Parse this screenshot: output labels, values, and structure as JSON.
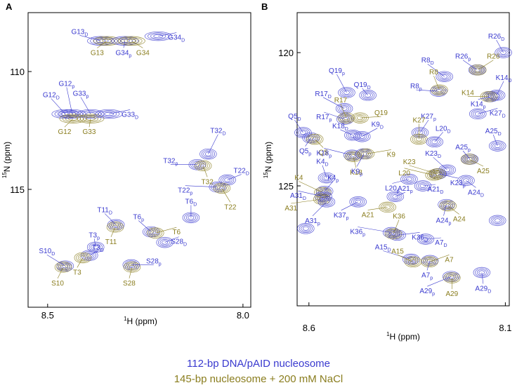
{
  "colors": {
    "blue": "#3a3acf",
    "olive": "#8a7d1e"
  },
  "legend": {
    "blue": "112-bp DNA/pAID nucleosome",
    "olive": "145-bp nucleosome + 200 mM NaCl"
  },
  "chart_data": [
    {
      "type": "scatter",
      "panel": "A",
      "xlabel": "1H (ppm)",
      "ylabel": "15N (ppm)",
      "xlim": [
        8.55,
        7.98
      ],
      "ylim": [
        107.5,
        120.0
      ],
      "xticks": [
        "8.5",
        "8.0"
      ],
      "yticks": [
        "110",
        "115"
      ],
      "peaks": [
        {
          "x": 8.364,
          "y": 108.7,
          "c": "blue",
          "label": "G13",
          "sub": "D"
        },
        {
          "x": 8.348,
          "y": 108.7,
          "c": "olive",
          "label": "G13",
          "sub": ""
        },
        {
          "x": 8.302,
          "y": 108.7,
          "c": "blue",
          "label": "G34",
          "sub": "p"
        },
        {
          "x": 8.285,
          "y": 108.7,
          "c": "olive",
          "label": "G34",
          "sub": ""
        },
        {
          "x": 8.217,
          "y": 108.5,
          "c": "blue",
          "label": "G34",
          "sub": "D"
        },
        {
          "x": 8.455,
          "y": 111.8,
          "c": "blue",
          "label": "G12",
          "sub": "D"
        },
        {
          "x": 8.437,
          "y": 111.8,
          "c": "blue",
          "label": "G12",
          "sub": "p"
        },
        {
          "x": 8.435,
          "y": 112.0,
          "c": "olive",
          "label": "G12",
          "sub": ""
        },
        {
          "x": 8.39,
          "y": 111.8,
          "c": "blue",
          "label": "G33",
          "sub": "p"
        },
        {
          "x": 8.39,
          "y": 112.0,
          "c": "olive",
          "label": "G33",
          "sub": ""
        },
        {
          "x": 8.343,
          "y": 111.8,
          "c": "blue",
          "label": "G33",
          "sub": "D"
        },
        {
          "x": 8.089,
          "y": 113.5,
          "c": "blue",
          "label": "T32",
          "sub": "D"
        },
        {
          "x": 8.117,
          "y": 113.95,
          "c": "blue",
          "label": "T32",
          "sub": "p"
        },
        {
          "x": 8.102,
          "y": 114.0,
          "c": "olive",
          "label": "T32",
          "sub": ""
        },
        {
          "x": 8.04,
          "y": 114.6,
          "c": "blue",
          "label": "T22",
          "sub": "D"
        },
        {
          "x": 8.065,
          "y": 114.9,
          "c": "blue",
          "label": "T22",
          "sub": "p"
        },
        {
          "x": 8.054,
          "y": 114.95,
          "c": "olive",
          "label": "T22",
          "sub": ""
        },
        {
          "x": 8.133,
          "y": 116.2,
          "c": "blue",
          "label": "T6",
          "sub": "D"
        },
        {
          "x": 8.325,
          "y": 116.5,
          "c": "blue",
          "label": "T11",
          "sub": "D"
        },
        {
          "x": 8.327,
          "y": 116.6,
          "c": "olive",
          "label": "T11",
          "sub": ""
        },
        {
          "x": 8.235,
          "y": 116.8,
          "c": "blue",
          "label": "T6",
          "sub": "p"
        },
        {
          "x": 8.224,
          "y": 116.85,
          "c": "olive",
          "label": "T6",
          "sub": ""
        },
        {
          "x": 8.2,
          "y": 117.25,
          "c": "blue",
          "label": "S28",
          "sub": "D"
        },
        {
          "x": 8.377,
          "y": 117.45,
          "c": "blue",
          "label": "T3",
          "sub": "p"
        },
        {
          "x": 8.393,
          "y": 117.8,
          "c": "blue",
          "label": "T3",
          "sub": "D"
        },
        {
          "x": 8.41,
          "y": 117.9,
          "c": "olive",
          "label": "T3",
          "sub": ""
        },
        {
          "x": 8.455,
          "y": 118.25,
          "c": "blue",
          "label": "S10",
          "sub": "D"
        },
        {
          "x": 8.46,
          "y": 118.3,
          "c": "olive",
          "label": "S10",
          "sub": ""
        },
        {
          "x": 8.286,
          "y": 118.2,
          "c": "blue",
          "label": "S28",
          "sub": "p"
        },
        {
          "x": 8.284,
          "y": 118.3,
          "c": "olive",
          "label": "S28",
          "sub": ""
        }
      ]
    },
    {
      "type": "scatter",
      "panel": "B",
      "xlabel": "1H (ppm)",
      "ylabel": "15N (ppm)",
      "xlim": [
        8.63,
        8.09
      ],
      "ylim": [
        118.5,
        129.5
      ],
      "xticks": [
        "8.6",
        "8.1"
      ],
      "yticks": [
        "120",
        "125"
      ],
      "peaks": [
        {
          "x": 8.105,
          "y": 120.0,
          "c": "blue",
          "label": "R26",
          "sub": "D"
        },
        {
          "x": 8.255,
          "y": 120.9,
          "c": "blue",
          "label": "R8",
          "sub": "D"
        },
        {
          "x": 8.172,
          "y": 120.65,
          "c": "blue",
          "label": "R26",
          "sub": "p"
        },
        {
          "x": 8.17,
          "y": 120.65,
          "c": "olive",
          "label": "R26",
          "sub": ""
        },
        {
          "x": 8.27,
          "y": 121.45,
          "c": "blue",
          "label": "R8",
          "sub": "p"
        },
        {
          "x": 8.268,
          "y": 121.4,
          "c": "olive",
          "label": "R8",
          "sub": ""
        },
        {
          "x": 8.504,
          "y": 121.5,
          "c": "blue",
          "label": "Q19",
          "sub": "p"
        },
        {
          "x": 8.45,
          "y": 121.6,
          "c": "blue",
          "label": "Q19",
          "sub": "D"
        },
        {
          "x": 8.122,
          "y": 121.6,
          "c": "blue",
          "label": "K14",
          "sub": "D"
        },
        {
          "x": 8.137,
          "y": 121.65,
          "c": "blue",
          "label": "K14",
          "sub": "p"
        },
        {
          "x": 8.142,
          "y": 121.65,
          "c": "olive",
          "label": "K14",
          "sub": ""
        },
        {
          "x": 8.51,
          "y": 122.1,
          "c": "blue",
          "label": "R17",
          "sub": "D"
        },
        {
          "x": 8.508,
          "y": 122.5,
          "c": "blue",
          "label": "R17",
          "sub": "p"
        },
        {
          "x": 8.505,
          "y": 122.45,
          "c": "olive",
          "label": "R17",
          "sub": ""
        },
        {
          "x": 8.47,
          "y": 122.45,
          "c": "olive",
          "label": "Q19",
          "sub": ""
        },
        {
          "x": 8.17,
          "y": 122.3,
          "c": "blue",
          "label": "K27",
          "sub": "D"
        },
        {
          "x": 8.317,
          "y": 123.0,
          "c": "blue",
          "label": "K27",
          "sub": "p"
        },
        {
          "x": 8.12,
          "y": 123.5,
          "c": "blue",
          "label": "A25",
          "sub": "D"
        },
        {
          "x": 8.615,
          "y": 123.0,
          "c": "blue",
          "label": "Q5",
          "sub": "D"
        },
        {
          "x": 8.595,
          "y": 123.2,
          "c": "blue",
          "label": "Q5",
          "sub": "p"
        },
        {
          "x": 8.585,
          "y": 123.25,
          "c": "olive",
          "label": "Q5",
          "sub": ""
        },
        {
          "x": 8.488,
          "y": 123.1,
          "c": "blue",
          "label": "K18",
          "sub": "D"
        },
        {
          "x": 8.465,
          "y": 123.15,
          "c": "blue",
          "label": "K9",
          "sub": "D"
        },
        {
          "x": 8.32,
          "y": 123.25,
          "c": "olive",
          "label": "K27",
          "sub": ""
        },
        {
          "x": 8.28,
          "y": 123.35,
          "c": "blue",
          "label": "L20",
          "sub": "D"
        },
        {
          "x": 8.19,
          "y": 124.0,
          "c": "blue",
          "label": "A25",
          "sub": "p"
        },
        {
          "x": 8.192,
          "y": 124.0,
          "c": "olive",
          "label": "A25",
          "sub": ""
        },
        {
          "x": 8.49,
          "y": 123.85,
          "c": "blue",
          "label": "K18",
          "sub": "p"
        },
        {
          "x": 8.487,
          "y": 123.9,
          "c": "olive",
          "label": "K18",
          "sub": ""
        },
        {
          "x": 8.46,
          "y": 123.8,
          "c": "blue",
          "label": "K9",
          "sub": "p"
        },
        {
          "x": 8.455,
          "y": 123.8,
          "c": "olive",
          "label": "K9",
          "sub": ""
        },
        {
          "x": 8.248,
          "y": 124.4,
          "c": "blue",
          "label": "K23",
          "sub": "D"
        },
        {
          "x": 8.271,
          "y": 124.55,
          "c": "blue",
          "label": "K23",
          "sub": "p"
        },
        {
          "x": 8.273,
          "y": 124.55,
          "c": "olive",
          "label": "K23",
          "sub": ""
        },
        {
          "x": 8.282,
          "y": 124.6,
          "c": "olive",
          "label": "L20",
          "sub": ""
        },
        {
          "x": 8.2,
          "y": 124.8,
          "c": "blue",
          "label": "A24",
          "sub": "D"
        },
        {
          "x": 8.555,
          "y": 124.7,
          "c": "blue",
          "label": "K4",
          "sub": "D"
        },
        {
          "x": 8.345,
          "y": 124.75,
          "c": "blue",
          "label": "L20",
          "sub": "p"
        },
        {
          "x": 8.31,
          "y": 125.0,
          "c": "blue",
          "label": "A21",
          "sub": "D"
        },
        {
          "x": 8.56,
          "y": 125.2,
          "c": "blue",
          "label": "K4",
          "sub": "p"
        },
        {
          "x": 8.565,
          "y": 125.25,
          "c": "olive",
          "label": "K4",
          "sub": ""
        },
        {
          "x": 8.563,
          "y": 125.4,
          "c": "blue",
          "label": "A31",
          "sub": "D"
        },
        {
          "x": 8.567,
          "y": 125.5,
          "c": "olive",
          "label": "A31",
          "sub": ""
        },
        {
          "x": 8.555,
          "y": 125.6,
          "c": "blue",
          "label": "A31",
          "sub": "p"
        },
        {
          "x": 8.475,
          "y": 125.6,
          "c": "blue",
          "label": "K37",
          "sub": "p"
        },
        {
          "x": 8.38,
          "y": 125.4,
          "c": "blue",
          "label": "A21",
          "sub": "p"
        },
        {
          "x": 8.4,
          "y": 125.8,
          "c": "olive",
          "label": "A21",
          "sub": ""
        },
        {
          "x": 8.25,
          "y": 125.7,
          "c": "blue",
          "label": "A24",
          "sub": "p"
        },
        {
          "x": 8.246,
          "y": 125.75,
          "c": "olive",
          "label": "A24",
          "sub": ""
        },
        {
          "x": 8.12,
          "y": 126.3,
          "c": "blue",
          "label": "",
          "sub": ""
        },
        {
          "x": 8.608,
          "y": 126.6,
          "c": "blue",
          "label": "",
          "sub": ""
        },
        {
          "x": 8.375,
          "y": 126.85,
          "c": "blue",
          "label": "K36",
          "sub": "D"
        },
        {
          "x": 8.39,
          "y": 126.75,
          "c": "blue",
          "label": "K36",
          "sub": "p"
        },
        {
          "x": 8.385,
          "y": 126.8,
          "c": "olive",
          "label": "K36",
          "sub": ""
        },
        {
          "x": 8.303,
          "y": 127.0,
          "c": "blue",
          "label": "A7",
          "sub": "D"
        },
        {
          "x": 8.34,
          "y": 127.75,
          "c": "blue",
          "label": "A15",
          "sub": "D"
        },
        {
          "x": 8.335,
          "y": 127.85,
          "c": "olive",
          "label": "A15",
          "sub": ""
        },
        {
          "x": 8.292,
          "y": 127.8,
          "c": "blue",
          "label": "A7",
          "sub": "p"
        },
        {
          "x": 8.293,
          "y": 127.85,
          "c": "olive",
          "label": "A7",
          "sub": ""
        },
        {
          "x": 8.16,
          "y": 128.25,
          "c": "blue",
          "label": "A29",
          "sub": "D"
        },
        {
          "x": 8.238,
          "y": 128.4,
          "c": "blue",
          "label": "A29",
          "sub": "p"
        },
        {
          "x": 8.236,
          "y": 128.45,
          "c": "olive",
          "label": "A29",
          "sub": ""
        }
      ]
    }
  ]
}
